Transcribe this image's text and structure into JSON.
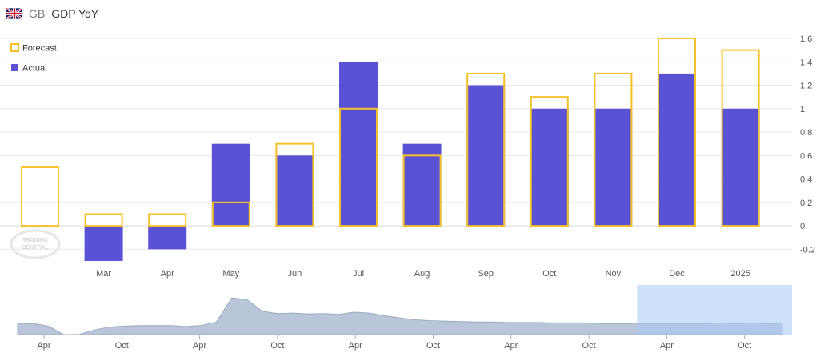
{
  "header": {
    "country_code": "GB",
    "title": "GDP YoY",
    "flag_icon": "united-kingdom-flag-icon"
  },
  "watermark": {
    "line1": "TRADING",
    "line2": "CENTRAL"
  },
  "chart_data": {
    "type": "bar",
    "title": "GDP YoY",
    "legend": {
      "placement": "top-left",
      "forecast": "Forecast",
      "actual": "Actual"
    },
    "categories": [
      "",
      "Mar",
      "Apr",
      "May",
      "Jun",
      "Jul",
      "Aug",
      "Sep",
      "Oct",
      "Nov",
      "Dec",
      "2025"
    ],
    "series": [
      {
        "name": "Forecast",
        "values": [
          0.5,
          0.1,
          0.1,
          0.2,
          0.7,
          1.0,
          0.6,
          1.3,
          1.1,
          1.3,
          1.6,
          1.5
        ]
      },
      {
        "name": "Actual",
        "values": [
          null,
          -0.3,
          -0.2,
          0.7,
          0.6,
          1.4,
          0.7,
          1.2,
          1.0,
          1.0,
          1.3,
          1.0
        ]
      }
    ],
    "y_ticks": [
      "1.6",
      "1.4",
      "1.2",
      "1",
      "0.8",
      "0.6",
      "0.4",
      "0.2",
      "0",
      "-0.2"
    ],
    "ylim": [
      -0.3,
      1.6
    ],
    "colors": {
      "forecast": "#f6c128",
      "actual": "#5a52d4",
      "grid": "#e8e8e8"
    }
  },
  "navigator": {
    "labels": [
      "Apr",
      "Oct",
      "Apr",
      "Oct",
      "Apr",
      "Oct",
      "Apr",
      "Oct",
      "Apr",
      "Oct"
    ],
    "values": [
      0.25,
      0.25,
      0.19,
      0.0,
      0.0,
      0.1,
      0.17,
      0.19,
      0.2,
      0.2,
      0.2,
      0.18,
      0.2,
      0.28,
      0.82,
      0.78,
      0.52,
      0.47,
      0.48,
      0.46,
      0.47,
      0.45,
      0.5,
      0.48,
      0.42,
      0.37,
      0.33,
      0.31,
      0.3,
      0.29,
      0.28,
      0.28,
      0.27,
      0.27,
      0.27,
      0.26,
      0.26,
      0.26,
      0.25,
      0.25,
      0.25,
      0.25,
      0.25,
      0.25,
      0.25,
      0.25,
      0.26,
      0.25,
      0.26,
      0.25,
      0.25
    ],
    "selection": [
      0.8,
      1.0
    ],
    "colors": {
      "fill": "#b9c6da",
      "selection": "#a8c8f5",
      "selected_fill": "#9ab9e6"
    }
  }
}
